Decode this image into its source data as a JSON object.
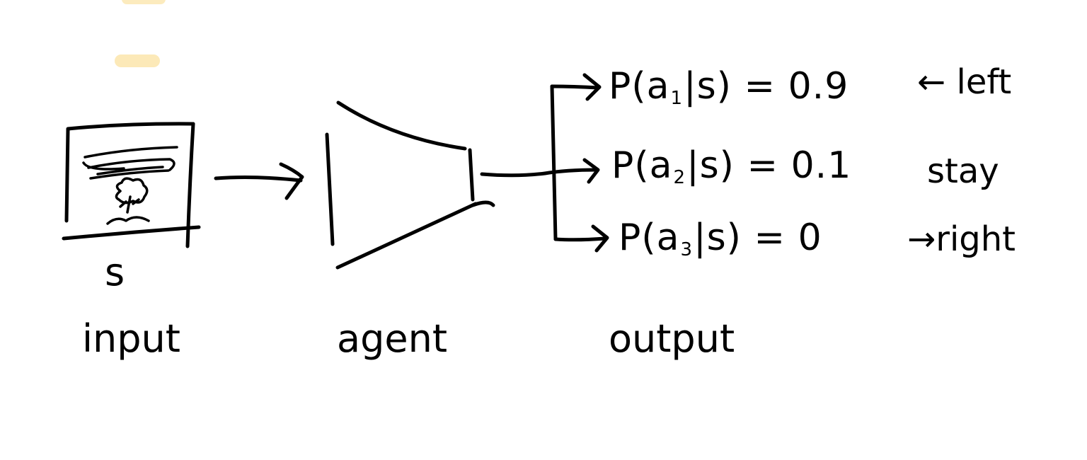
{
  "colors": {
    "ink": "#000000",
    "highlight": "#f8d98c",
    "background": "#ffffff"
  },
  "input": {
    "symbol": "s",
    "caption": "input"
  },
  "agent": {
    "caption": "agent"
  },
  "output": {
    "caption": "output",
    "rows": [
      {
        "prob_prefix": "P(a",
        "sub": "1",
        "prob_suffix": "|s) = 0.9",
        "arrow": "←",
        "action": "left"
      },
      {
        "prob_prefix": "P(a",
        "sub": "2",
        "prob_suffix": "|s) = 0.1",
        "arrow": "",
        "action": "stay"
      },
      {
        "prob_prefix": "P(a",
        "sub": "3",
        "prob_suffix": "|s) = 0",
        "arrow": "→",
        "action": "right"
      }
    ]
  }
}
